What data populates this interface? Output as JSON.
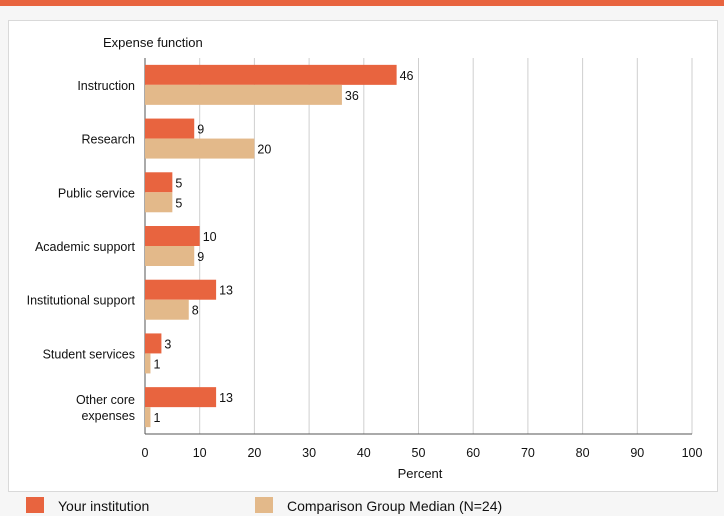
{
  "chart_data": {
    "type": "bar",
    "orientation": "horizontal",
    "ylabel": "Expense function",
    "xlabel": "Percent",
    "xlim": [
      0,
      100
    ],
    "xticks": [
      0,
      10,
      20,
      30,
      40,
      50,
      60,
      70,
      80,
      90,
      100
    ],
    "grid": true,
    "categories": [
      "Instruction",
      "Research",
      "Public service",
      "Academic support",
      "Institutional support",
      "Student services",
      "Other core expenses"
    ],
    "series": [
      {
        "name": "Your institution",
        "color": "#e8643f",
        "values": [
          46,
          9,
          5,
          10,
          13,
          3,
          13
        ]
      },
      {
        "name": "Comparison Group Median (N=24)",
        "color": "#e3b98a",
        "values": [
          36,
          20,
          5,
          9,
          8,
          1,
          1
        ]
      }
    ],
    "legend_position": "bottom"
  }
}
